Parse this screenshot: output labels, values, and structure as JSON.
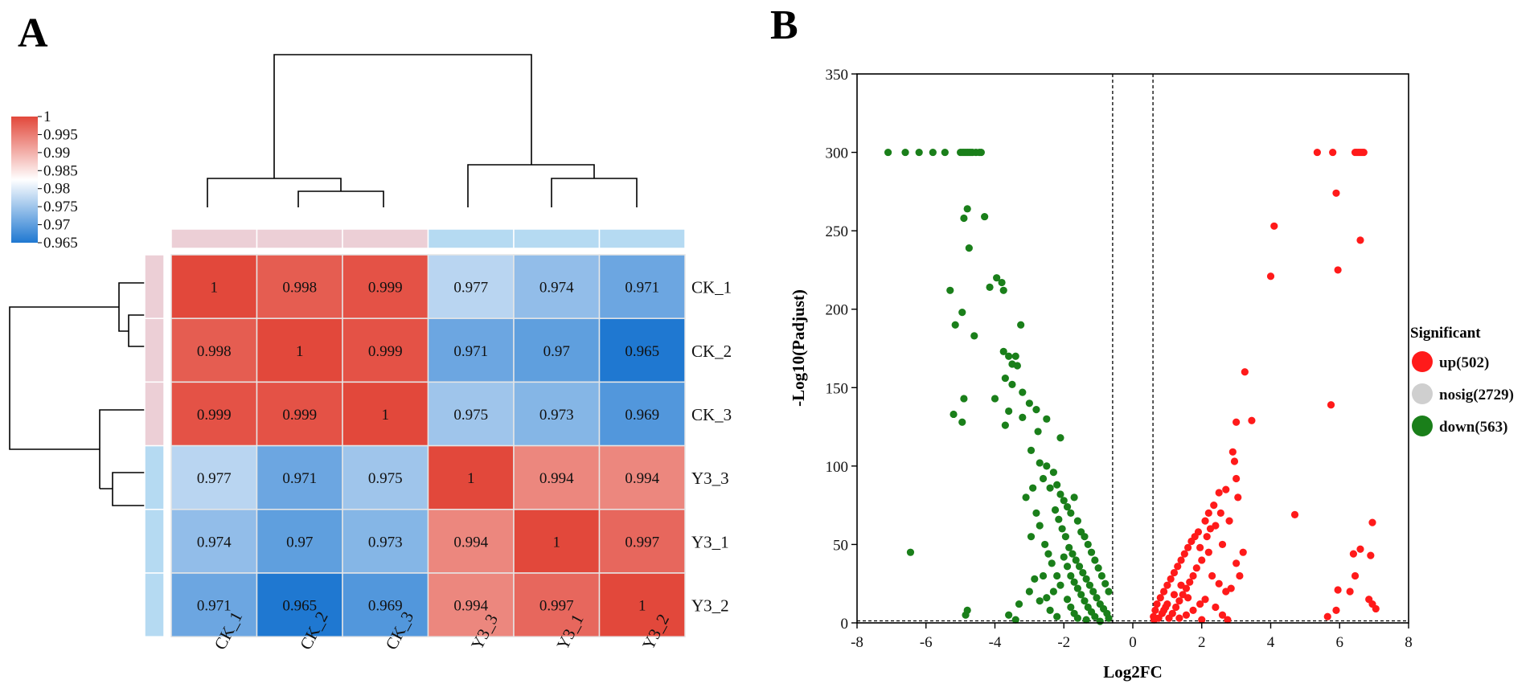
{
  "panels": {
    "a_label": "A",
    "b_label": "B"
  },
  "colors": {
    "heat_low": "#1f78d1",
    "heat_mid": "#ffffff",
    "heat_high": "#e2483b",
    "group_ck": "#eccfd6",
    "group_y3": "#b5daf2",
    "up": "#ff1a1a",
    "nosig": "#cfcfcf",
    "down": "#1a7f1a"
  },
  "chart_data": [
    {
      "type": "heatmap",
      "title": "",
      "rows": [
        "CK_1",
        "CK_2",
        "CK_3",
        "Y3_3",
        "Y3_1",
        "Y3_2"
      ],
      "columns": [
        "CK_1",
        "CK_2",
        "CK_3",
        "Y3_3",
        "Y3_1",
        "Y3_2"
      ],
      "values": [
        [
          1,
          0.998,
          0.999,
          0.977,
          0.974,
          0.971
        ],
        [
          0.998,
          1,
          0.999,
          0.971,
          0.97,
          0.965
        ],
        [
          0.999,
          0.999,
          1,
          0.975,
          0.973,
          0.969
        ],
        [
          0.977,
          0.971,
          0.975,
          1,
          0.994,
          0.994
        ],
        [
          0.974,
          0.97,
          0.973,
          0.994,
          1,
          0.997
        ],
        [
          0.971,
          0.965,
          0.969,
          0.994,
          0.997,
          1
        ]
      ],
      "cell_labels": [
        [
          "1",
          "0.998",
          "0.999",
          "0.977",
          "0.974",
          "0.971"
        ],
        [
          "0.998",
          "1",
          "0.999",
          "0.971",
          "0.97",
          "0.965"
        ],
        [
          "0.999",
          "0.999",
          "1",
          "0.975",
          "0.973",
          "0.969"
        ],
        [
          "0.977",
          "0.971",
          "0.975",
          "1",
          "0.994",
          "0.994"
        ],
        [
          "0.974",
          "0.97",
          "0.973",
          "0.994",
          "1",
          "0.997"
        ],
        [
          "0.971",
          "0.965",
          "0.969",
          "0.994",
          "0.997",
          "1"
        ]
      ],
      "groups": [
        "CK",
        "CK",
        "CK",
        "Y3",
        "Y3",
        "Y3"
      ],
      "color_scale": {
        "min": 0.965,
        "max": 1,
        "ticks": [
          "1",
          "0.995",
          "0.99",
          "0.985",
          "0.98",
          "0.975",
          "0.97",
          "0.965"
        ]
      }
    },
    {
      "type": "scatter",
      "title": "",
      "xlabel": "Log2FC",
      "ylabel": "-Log10(Padjust)",
      "xlim": [
        -8,
        8
      ],
      "ylim": [
        0,
        350
      ],
      "xticks": [
        "-8",
        "-6",
        "-4",
        "-2",
        "0",
        "2",
        "4",
        "6",
        "8"
      ],
      "yticks": [
        "0",
        "50",
        "100",
        "150",
        "200",
        "250",
        "300",
        "350"
      ],
      "thresholds": {
        "x": [
          -0.585,
          0.585
        ],
        "y": 1.3
      },
      "legend": {
        "title": "Significant",
        "position": "right",
        "entries": [
          {
            "key": "up",
            "label": "up(502)"
          },
          {
            "key": "nosig",
            "label": "nosig(2729)"
          },
          {
            "key": "down",
            "label": "down(563)"
          }
        ]
      },
      "series": [
        {
          "name": "down",
          "points": [
            [
              -7.1,
              300
            ],
            [
              -6.6,
              300
            ],
            [
              -6.2,
              300
            ],
            [
              -5.8,
              300
            ],
            [
              -5.45,
              300
            ],
            [
              -5.0,
              300
            ],
            [
              -4.95,
              300
            ],
            [
              -4.9,
              300
            ],
            [
              -4.85,
              300
            ],
            [
              -4.8,
              300
            ],
            [
              -4.75,
              300
            ],
            [
              -4.7,
              300
            ],
            [
              -4.65,
              300
            ],
            [
              -4.55,
              300
            ],
            [
              -4.45,
              300
            ],
            [
              -4.4,
              300
            ],
            [
              -4.8,
              264
            ],
            [
              -4.9,
              258
            ],
            [
              -4.3,
              259
            ],
            [
              -4.75,
              239
            ],
            [
              -4.15,
              214
            ],
            [
              -3.95,
              220
            ],
            [
              -3.8,
              217
            ],
            [
              -3.75,
              212
            ],
            [
              -5.3,
              212
            ],
            [
              -4.95,
              198
            ],
            [
              -5.15,
              190
            ],
            [
              -3.25,
              190
            ],
            [
              -4.6,
              183
            ],
            [
              -3.75,
              173
            ],
            [
              -3.6,
              170
            ],
            [
              -3.5,
              165
            ],
            [
              -3.4,
              170
            ],
            [
              -3.35,
              164
            ],
            [
              -3.7,
              156
            ],
            [
              -3.5,
              152
            ],
            [
              -3.2,
              147
            ],
            [
              -3.0,
              140
            ],
            [
              -2.8,
              136
            ],
            [
              -4.0,
              143
            ],
            [
              -3.6,
              135
            ],
            [
              -4.9,
              143
            ],
            [
              -3.2,
              131
            ],
            [
              -3.7,
              126
            ],
            [
              -2.75,
              122
            ],
            [
              -2.5,
              130
            ],
            [
              -2.1,
              118
            ],
            [
              -5.2,
              133
            ],
            [
              -4.95,
              128
            ],
            [
              -2.95,
              110
            ],
            [
              -2.7,
              102
            ],
            [
              -2.5,
              100
            ],
            [
              -2.3,
              96
            ],
            [
              -2.2,
              88
            ],
            [
              -2.1,
              82
            ],
            [
              -2.0,
              78
            ],
            [
              -1.9,
              74
            ],
            [
              -1.8,
              70
            ],
            [
              -1.7,
              80
            ],
            [
              -1.6,
              65
            ],
            [
              -1.5,
              58
            ],
            [
              -1.4,
              55
            ],
            [
              -1.3,
              50
            ],
            [
              -1.2,
              45
            ],
            [
              -1.1,
              40
            ],
            [
              -1.0,
              35
            ],
            [
              -0.9,
              30
            ],
            [
              -0.8,
              25
            ],
            [
              -0.7,
              20
            ],
            [
              -2.6,
              92
            ],
            [
              -2.4,
              86
            ],
            [
              -2.25,
              72
            ],
            [
              -2.15,
              66
            ],
            [
              -2.05,
              60
            ],
            [
              -1.95,
              55
            ],
            [
              -1.85,
              48
            ],
            [
              -1.75,
              44
            ],
            [
              -1.65,
              40
            ],
            [
              -1.55,
              36
            ],
            [
              -1.45,
              32
            ],
            [
              -1.35,
              28
            ],
            [
              -1.25,
              24
            ],
            [
              -1.15,
              20
            ],
            [
              -1.05,
              16
            ],
            [
              -0.95,
              12
            ],
            [
              -0.85,
              9
            ],
            [
              -0.75,
              6
            ],
            [
              -0.7,
              3
            ],
            [
              -2.9,
              86
            ],
            [
              -3.1,
              80
            ],
            [
              -2.8,
              70
            ],
            [
              -2.7,
              62
            ],
            [
              -2.95,
              55
            ],
            [
              -2.55,
              50
            ],
            [
              -2.45,
              44
            ],
            [
              -2.35,
              38
            ],
            [
              -2.6,
              30
            ],
            [
              -2.85,
              28
            ],
            [
              -3.0,
              20
            ],
            [
              -2.7,
              14
            ],
            [
              -2.4,
              8
            ],
            [
              -2.2,
              4
            ],
            [
              -3.3,
              12
            ],
            [
              -3.6,
              5
            ],
            [
              -3.4,
              2
            ],
            [
              -6.45,
              45
            ],
            [
              -4.8,
              8
            ],
            [
              -4.85,
              5
            ],
            [
              -2.0,
              42
            ],
            [
              -1.9,
              36
            ],
            [
              -1.8,
              30
            ],
            [
              -1.7,
              26
            ],
            [
              -1.6,
              22
            ],
            [
              -1.5,
              18
            ],
            [
              -1.4,
              14
            ],
            [
              -1.3,
              10
            ],
            [
              -1.2,
              7
            ],
            [
              -1.1,
              4
            ],
            [
              -1.9,
              15
            ],
            [
              -1.8,
              10
            ],
            [
              -1.7,
              6
            ],
            [
              -1.6,
              3
            ],
            [
              -2.1,
              24
            ],
            [
              -2.2,
              30
            ],
            [
              -2.3,
              20
            ],
            [
              -2.5,
              16
            ],
            [
              -1.35,
              2
            ],
            [
              -0.95,
              1
            ]
          ]
        },
        {
          "name": "up",
          "points": [
            [
              5.35,
              300
            ],
            [
              5.8,
              300
            ],
            [
              6.45,
              300
            ],
            [
              6.5,
              300
            ],
            [
              6.55,
              300
            ],
            [
              6.6,
              300
            ],
            [
              6.65,
              300
            ],
            [
              6.7,
              300
            ],
            [
              5.9,
              274
            ],
            [
              4.1,
              253
            ],
            [
              6.6,
              244
            ],
            [
              5.95,
              225
            ],
            [
              4.0,
              221
            ],
            [
              3.25,
              160
            ],
            [
              5.75,
              139
            ],
            [
              3.45,
              129
            ],
            [
              3.0,
              128
            ],
            [
              2.9,
              109
            ],
            [
              2.95,
              103
            ],
            [
              3.0,
              92
            ],
            [
              3.05,
              80
            ],
            [
              2.7,
              85
            ],
            [
              2.5,
              83
            ],
            [
              2.35,
              75
            ],
            [
              2.2,
              70
            ],
            [
              2.1,
              65
            ],
            [
              2.4,
              62
            ],
            [
              1.9,
              58
            ],
            [
              1.8,
              55
            ],
            [
              1.7,
              52
            ],
            [
              2.6,
              50
            ],
            [
              1.6,
              48
            ],
            [
              1.5,
              44
            ],
            [
              1.4,
              40
            ],
            [
              1.3,
              36
            ],
            [
              1.2,
              32
            ],
            [
              1.1,
              28
            ],
            [
              1.0,
              24
            ],
            [
              0.9,
              20
            ],
            [
              0.8,
              16
            ],
            [
              0.7,
              12
            ],
            [
              0.65,
              8
            ],
            [
              0.6,
              4
            ],
            [
              0.62,
              2
            ],
            [
              4.7,
              69
            ],
            [
              6.95,
              64
            ],
            [
              6.6,
              47
            ],
            [
              6.4,
              44
            ],
            [
              6.9,
              43
            ],
            [
              6.45,
              30
            ],
            [
              6.3,
              20
            ],
            [
              5.95,
              21
            ],
            [
              6.85,
              15
            ],
            [
              6.95,
              12
            ],
            [
              7.05,
              9
            ],
            [
              5.9,
              8
            ],
            [
              5.65,
              4
            ],
            [
              2.2,
              45
            ],
            [
              2.0,
              40
            ],
            [
              1.85,
              35
            ],
            [
              1.75,
              30
            ],
            [
              1.65,
              26
            ],
            [
              1.55,
              22
            ],
            [
              1.45,
              18
            ],
            [
              1.35,
              14
            ],
            [
              1.25,
              10
            ],
            [
              1.15,
              6
            ],
            [
              1.05,
              3
            ],
            [
              2.3,
              30
            ],
            [
              2.5,
              25
            ],
            [
              2.7,
              20
            ],
            [
              2.1,
              15
            ],
            [
              2.4,
              10
            ],
            [
              2.6,
              5
            ],
            [
              3.0,
              38
            ],
            [
              3.1,
              30
            ],
            [
              2.85,
              22
            ],
            [
              1.95,
              12
            ],
            [
              1.75,
              8
            ],
            [
              1.55,
              5
            ],
            [
              1.35,
              3
            ],
            [
              0.85,
              6
            ],
            [
              0.95,
              10
            ],
            [
              0.75,
              3
            ],
            [
              2.15,
              55
            ],
            [
              2.25,
              60
            ],
            [
              1.95,
              48
            ],
            [
              3.2,
              45
            ],
            [
              2.8,
              65
            ],
            [
              2.55,
              70
            ],
            [
              1.6,
              16
            ],
            [
              1.4,
              24
            ],
            [
              1.2,
              18
            ],
            [
              1.0,
              12
            ],
            [
              0.9,
              8
            ],
            [
              2.0,
              2
            ],
            [
              2.75,
              2
            ]
          ]
        }
      ]
    }
  ]
}
